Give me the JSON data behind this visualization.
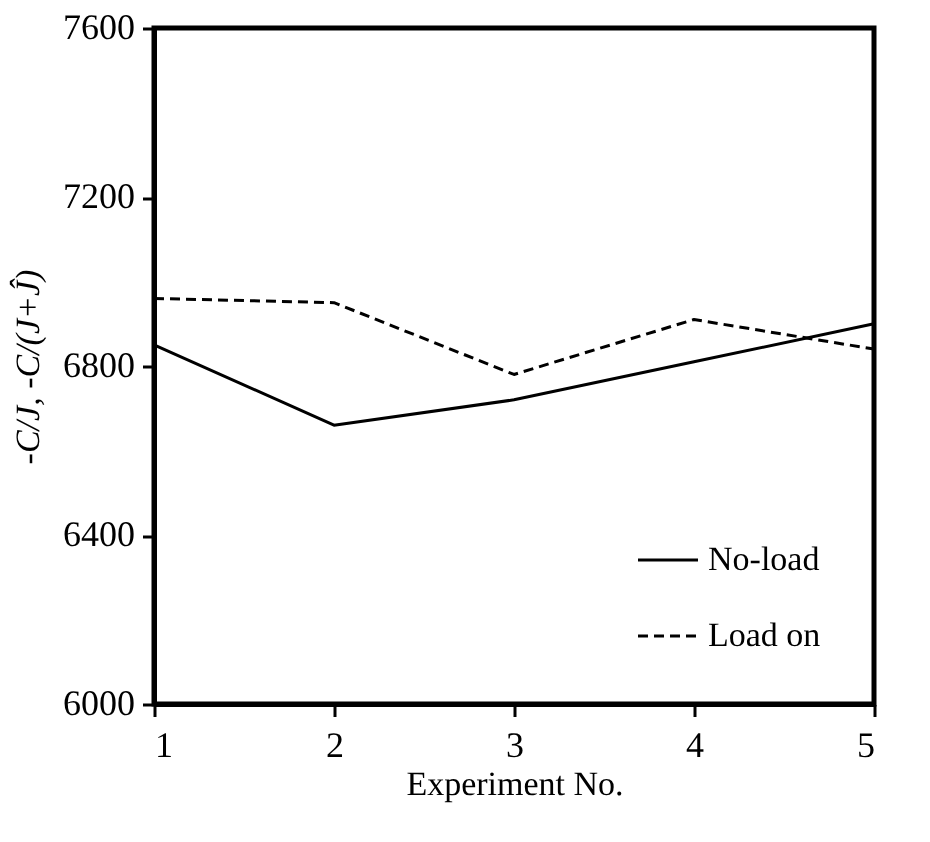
{
  "chart_data": {
    "type": "line",
    "xlabel": "Experiment No.",
    "ylabel": "-C/J, -C/(J+Ĵ)",
    "x": [
      1,
      2,
      3,
      4,
      5
    ],
    "series": [
      {
        "name": "No-load",
        "color": "#000000",
        "line_style": "solid",
        "values": [
          6850,
          6660,
          6720,
          6810,
          6900
        ]
      },
      {
        "name": "Load on",
        "color": "#000000",
        "line_style": "dashed",
        "values": [
          6960,
          6950,
          6780,
          6910,
          6840
        ]
      }
    ],
    "xlim": [
      1,
      5
    ],
    "xticks": [
      1,
      2,
      3,
      4,
      5
    ],
    "ylim": [
      6000,
      7600
    ],
    "yticks": [
      6000,
      6400,
      6800,
      7200,
      7600
    ],
    "grid": false,
    "legend": "bottom right",
    "marker": "none"
  }
}
